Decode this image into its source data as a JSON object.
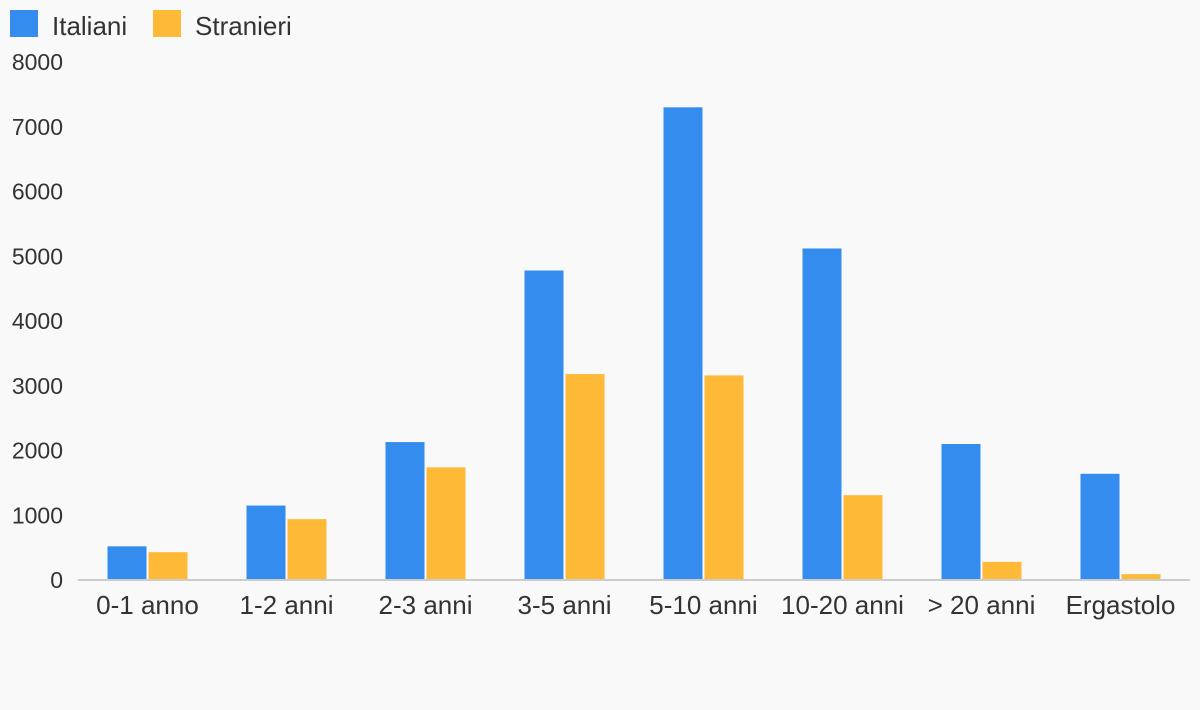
{
  "chart_data": {
    "type": "bar",
    "title": "",
    "xlabel": "",
    "ylabel": "",
    "categories": [
      "0-1 anno",
      "1-2 anni",
      "2-3 anni",
      "3-5 anni",
      "5-10 anni",
      "10-20 anni",
      "> 20 anni",
      "Ergastolo"
    ],
    "series": [
      {
        "name": "Italiani",
        "color": "#348cee",
        "values": [
          520,
          1150,
          2130,
          4780,
          7300,
          5120,
          2100,
          1640
        ]
      },
      {
        "name": "Stranieri",
        "color": "#feb937",
        "values": [
          430,
          940,
          1740,
          3180,
          3160,
          1310,
          280,
          90
        ]
      }
    ],
    "ylim": [
      0,
      8000
    ],
    "yticks": [
      0,
      1000,
      2000,
      3000,
      4000,
      5000,
      6000,
      7000,
      8000
    ],
    "grid": false,
    "legend": "top-left"
  }
}
